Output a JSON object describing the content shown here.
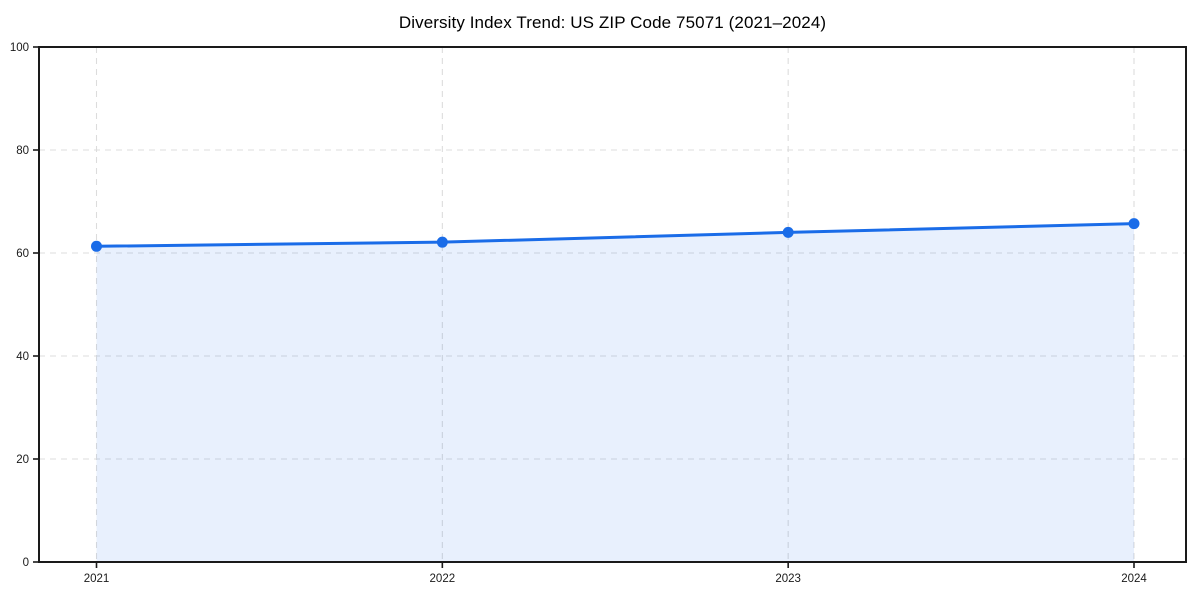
{
  "chart_data": {
    "type": "area",
    "title": "Diversity Index Trend: US ZIP Code 75071 (2021–2024)",
    "x": [
      2021,
      2022,
      2023,
      2024
    ],
    "xtick_labels": [
      "2021",
      "2022",
      "2023",
      "2024"
    ],
    "values": [
      61.3,
      62.1,
      64.0,
      65.7
    ],
    "xlabel": "",
    "ylabel": "",
    "ylim": [
      0,
      100
    ],
    "yticks": [
      0,
      20,
      40,
      60,
      80,
      100
    ],
    "grid": true,
    "grid_style": "dashed",
    "legend_position": "none",
    "colors": {
      "line": "#1a6ce8",
      "marker": "#1a6ce8",
      "fill": "#1a6ce8",
      "fill_opacity": 0.1,
      "grid": "#dcdcdc",
      "spine": "#1a1a1a",
      "tick_label": "#1a1a1a",
      "title": "#000000"
    }
  }
}
